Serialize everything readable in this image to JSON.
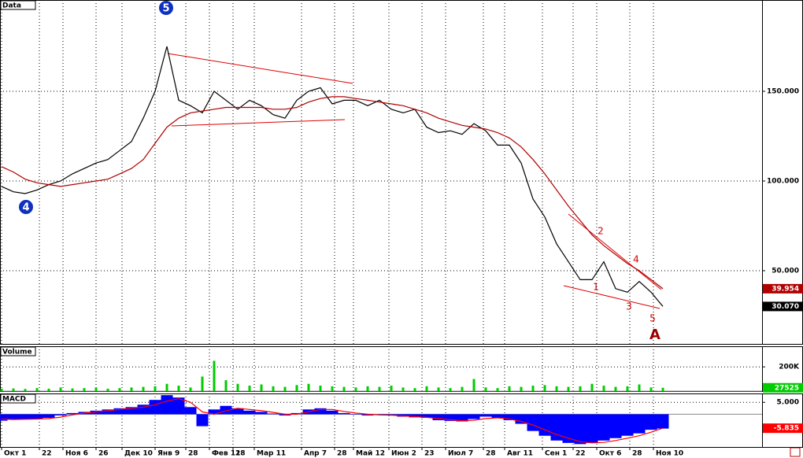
{
  "chart_data": [
    {
      "type": "line",
      "title": "Data",
      "x": [
        0,
        5,
        10,
        15,
        20,
        25,
        30,
        35,
        40,
        45,
        50,
        55,
        60,
        65,
        70,
        75,
        80,
        85,
        90,
        95,
        100,
        105,
        110,
        115,
        120,
        125,
        130,
        135,
        140,
        145,
        150,
        155,
        160,
        165,
        170,
        175,
        180,
        185,
        190,
        195,
        200,
        205,
        210,
        215,
        220,
        225,
        230,
        235,
        240,
        245,
        250,
        255,
        260,
        265,
        270,
        275,
        280
      ],
      "series": [
        {
          "name": "Close",
          "color": "#000000",
          "last_value_box": true,
          "values": [
            97,
            94,
            93,
            95,
            98,
            100,
            104,
            107,
            110,
            112,
            117,
            122,
            135,
            150,
            175,
            145,
            142,
            138,
            150,
            145,
            140,
            145,
            142,
            137,
            135,
            145,
            150,
            152,
            143,
            145,
            145,
            142,
            145,
            140,
            138,
            140,
            130,
            127,
            128,
            126,
            132,
            128,
            120,
            120,
            110,
            90,
            80,
            65,
            55,
            45,
            45,
            55,
            40,
            38,
            44,
            38,
            30.07
          ],
          "value_labels": [
            null,
            null,
            null,
            null,
            null,
            null,
            null,
            null,
            null,
            null,
            null,
            null,
            null,
            null,
            null,
            null,
            null,
            null,
            null,
            null,
            null,
            null,
            null,
            null,
            null,
            null,
            null,
            null,
            null,
            null,
            null,
            null,
            null,
            null,
            null,
            null,
            null,
            null,
            null,
            null,
            null,
            null,
            null,
            null,
            null,
            null,
            null,
            null,
            null,
            null,
            null,
            null,
            null,
            null,
            null,
            null,
            "30.070"
          ]
        },
        {
          "name": "MA",
          "color": "#b00000",
          "last_value_box": true,
          "values": [
            108,
            105,
            101,
            99,
            98,
            97,
            98,
            99,
            100,
            101,
            104,
            107,
            112,
            121,
            130,
            135,
            138,
            139,
            140,
            141,
            141,
            141,
            141,
            140,
            140,
            141,
            144,
            146,
            147,
            147,
            146,
            145,
            144,
            143,
            142,
            140,
            138,
            135,
            133,
            131,
            130,
            129,
            127,
            124,
            119,
            112,
            104,
            95,
            86,
            78,
            70,
            64,
            59,
            54,
            50,
            45,
            39.954
          ]
        }
      ],
      "annotations": [
        "5",
        "4",
        "1",
        "2",
        "3",
        "4",
        "5",
        "A"
      ],
      "xlim": [
        -0.67,
        322
      ],
      "ylim": [
        9.2,
        200.9
      ],
      "yticks": [
        {
          "value": 150,
          "label": "150.000"
        },
        {
          "value": 100,
          "label": "100.000"
        },
        {
          "value": 50,
          "label": "50.000"
        }
      ],
      "grid": true
    },
    {
      "type": "bar",
      "title": "Volume",
      "x": [
        0,
        5,
        10,
        15,
        20,
        25,
        30,
        35,
        40,
        45,
        50,
        55,
        60,
        65,
        70,
        75,
        80,
        85,
        90,
        95,
        100,
        105,
        110,
        115,
        120,
        125,
        130,
        135,
        140,
        145,
        150,
        155,
        160,
        165,
        170,
        175,
        180,
        185,
        190,
        195,
        200,
        205,
        210,
        215,
        220,
        225,
        230,
        235,
        240,
        245,
        250,
        255,
        260,
        265,
        270,
        275,
        280
      ],
      "series": [
        {
          "name": "Volume",
          "color": "#00cc00",
          "last_value_box": true,
          "values": [
            20000,
            22000,
            18000,
            25000,
            20000,
            30000,
            22000,
            25000,
            28000,
            20000,
            25000,
            30000,
            35000,
            40000,
            60000,
            45000,
            30000,
            120000,
            250000,
            90000,
            60000,
            45000,
            55000,
            40000,
            35000,
            50000,
            60000,
            45000,
            40000,
            35000,
            30000,
            40000,
            35000,
            45000,
            30000,
            25000,
            40000,
            30000,
            25000,
            35000,
            100000,
            30000,
            25000,
            40000,
            35000,
            45000,
            50000,
            40000,
            35000,
            40000,
            60000,
            45000,
            35000,
            40000,
            55000,
            30000,
            27525
          ]
        }
      ],
      "xlim": [
        -0.67,
        322
      ],
      "ylim": [
        0,
        370000
      ],
      "yticks": [
        {
          "value": 200000,
          "label": "200K"
        }
      ],
      "grid": true
    },
    {
      "type": "bar",
      "title": "MACD",
      "x": [
        0,
        5,
        10,
        15,
        20,
        25,
        30,
        35,
        40,
        45,
        50,
        55,
        60,
        65,
        70,
        75,
        80,
        85,
        90,
        95,
        100,
        105,
        110,
        115,
        120,
        125,
        130,
        135,
        140,
        145,
        150,
        155,
        160,
        165,
        170,
        175,
        180,
        185,
        190,
        195,
        200,
        205,
        210,
        215,
        220,
        225,
        230,
        235,
        240,
        245,
        250,
        255,
        260,
        265,
        270,
        275,
        280
      ],
      "series": [
        {
          "name": "MACD",
          "color": "#0000ff",
          "values": [
            -2.7,
            -2,
            -2,
            -2,
            -1.5,
            -0.5,
            0.5,
            1,
            1.5,
            2,
            2.5,
            3,
            4,
            6,
            8,
            7,
            3,
            -5,
            2,
            3.5,
            2.5,
            1.5,
            1,
            0.3,
            -0.5,
            0.5,
            2,
            2.5,
            1.5,
            0.5,
            0,
            -0.5,
            -0.3,
            -0.5,
            -1,
            -1.3,
            -1.5,
            -2.5,
            -2.8,
            -3,
            -2,
            -1,
            -1.5,
            -2.5,
            -4,
            -7,
            -9,
            -11,
            -12,
            -12.5,
            -12,
            -11,
            -10,
            -9,
            -8,
            -6.5,
            -6
          ]
        },
        {
          "name": "Signal",
          "color": "#ff0000",
          "type": "line",
          "last_value_box": true,
          "values": [
            -2,
            -2.2,
            -2.1,
            -2,
            -1.8,
            -1.2,
            -0.3,
            0.5,
            1,
            1.5,
            2,
            2.5,
            3,
            4,
            5.5,
            6.5,
            5,
            1,
            0,
            1.5,
            2.5,
            2,
            1.5,
            0.8,
            0,
            0,
            1,
            2,
            2,
            1.2,
            0.5,
            0,
            -0.3,
            -0.4,
            -0.7,
            -1,
            -1.3,
            -1.8,
            -2.3,
            -2.7,
            -2.5,
            -1.8,
            -1.5,
            -2,
            -3,
            -4.5,
            -6.5,
            -8.5,
            -10,
            -11.5,
            -12,
            -11.8,
            -11,
            -10,
            -9,
            -7.5,
            -5.835
          ]
        }
      ],
      "xlim": [
        -0.67,
        322
      ],
      "ylim": [
        -13.7,
        8.7
      ],
      "yticks": [
        {
          "value": 5,
          "label": "5.000"
        }
      ],
      "grid": true,
      "xticks": [
        {
          "value": 0,
          "label": "Окт 1"
        },
        {
          "value": 16,
          "label": "22"
        },
        {
          "value": 26,
          "label": "Ноя 6"
        },
        {
          "value": 40,
          "label": "26"
        },
        {
          "value": 51,
          "label": "Дек 10"
        },
        {
          "value": 65,
          "label": "Янв 9"
        },
        {
          "value": 78,
          "label": "28"
        },
        {
          "value": 88,
          "label": "Фев 11"
        },
        {
          "value": 98,
          "label": "28"
        },
        {
          "value": 107,
          "label": "Мар 11"
        },
        {
          "value": 127,
          "label": "Апр 7"
        },
        {
          "value": 141,
          "label": "28"
        },
        {
          "value": 149,
          "label": "Май 12"
        },
        {
          "value": 164,
          "label": "Июн 2"
        },
        {
          "value": 178,
          "label": "23"
        },
        {
          "value": 188,
          "label": "Июл 7"
        },
        {
          "value": 204,
          "label": "28"
        },
        {
          "value": 213,
          "label": "Авг 11"
        },
        {
          "value": 229,
          "label": "Сен 1"
        },
        {
          "value": 242,
          "label": "22"
        },
        {
          "value": 252,
          "label": "Окт 6"
        },
        {
          "value": 266,
          "label": "28"
        },
        {
          "value": 276,
          "label": "Ноя 10"
        }
      ]
    }
  ]
}
